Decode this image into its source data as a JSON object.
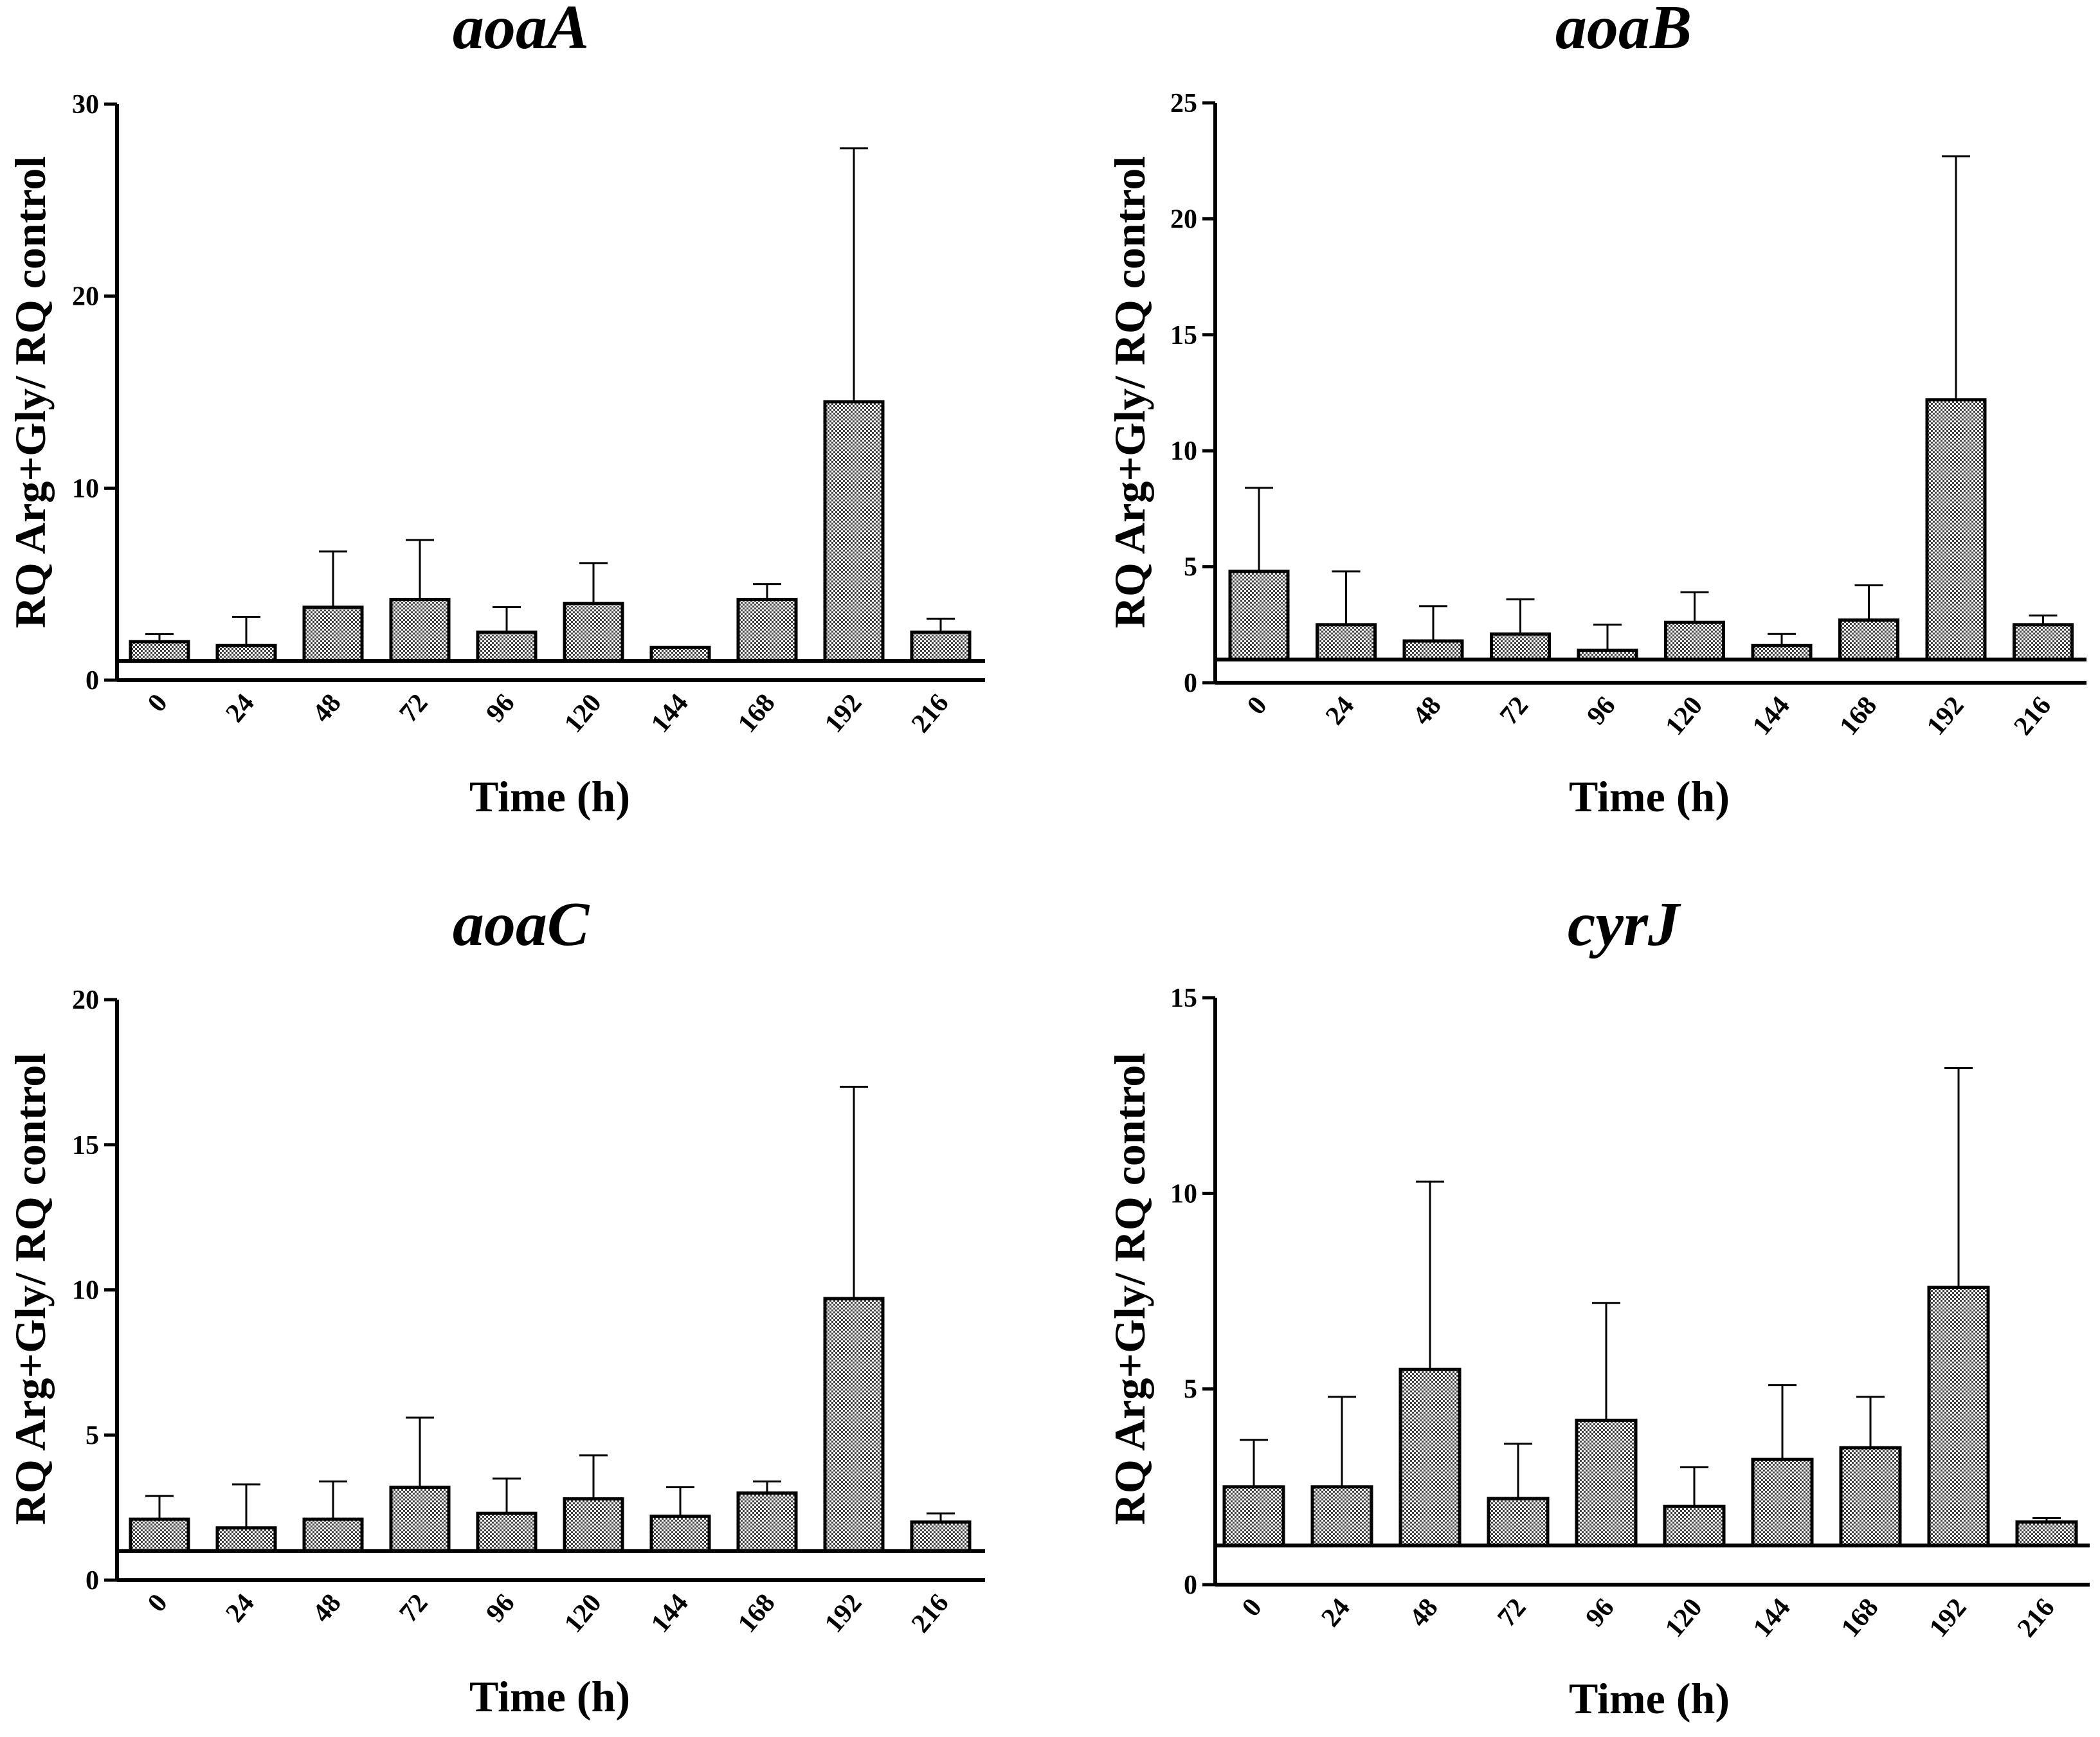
{
  "chart_data": [
    {
      "type": "bar",
      "title": "aoaA",
      "xlabel": "Time (h)",
      "ylabel": "RQ Arg+Gly/ RQ control",
      "ylim": [
        0,
        30
      ],
      "yticks": [
        0,
        10,
        20,
        30
      ],
      "baseline": 1,
      "categories": [
        "0",
        "24",
        "48",
        "72",
        "96",
        "120",
        "144",
        "168",
        "192",
        "216"
      ],
      "values": [
        2.0,
        1.8,
        3.8,
        4.2,
        2.5,
        4.0,
        1.7,
        4.2,
        14.5,
        2.5
      ],
      "errors": [
        0.4,
        1.5,
        2.9,
        3.1,
        1.3,
        2.1,
        0.0,
        0.8,
        13.2,
        0.7
      ]
    },
    {
      "type": "bar",
      "title": "aoaB",
      "xlabel": "Time (h)",
      "ylabel": "RQ Arg+Gly/ RQ control",
      "ylim": [
        0,
        25
      ],
      "yticks": [
        0,
        5,
        10,
        15,
        20,
        25
      ],
      "baseline": 1,
      "categories": [
        "0",
        "24",
        "48",
        "72",
        "96",
        "120",
        "144",
        "168",
        "192",
        "216"
      ],
      "values": [
        4.8,
        2.5,
        1.8,
        2.1,
        1.4,
        2.6,
        1.6,
        2.7,
        12.2,
        2.5
      ],
      "errors": [
        3.6,
        2.3,
        1.5,
        1.5,
        1.1,
        1.3,
        0.5,
        1.5,
        10.5,
        0.4
      ]
    },
    {
      "type": "bar",
      "title": "aoaC",
      "xlabel": "Time (h)",
      "ylabel": "RQ Arg+Gly/ RQ control",
      "ylim": [
        0,
        20
      ],
      "yticks": [
        0,
        5,
        10,
        15,
        20
      ],
      "baseline": 1,
      "categories": [
        "0",
        "24",
        "48",
        "72",
        "96",
        "120",
        "144",
        "168",
        "192",
        "216"
      ],
      "values": [
        2.1,
        1.8,
        2.1,
        3.2,
        2.3,
        2.8,
        2.2,
        3.0,
        9.7,
        2.0
      ],
      "errors": [
        0.8,
        1.5,
        1.3,
        2.4,
        1.2,
        1.5,
        1.0,
        0.4,
        7.3,
        0.3
      ]
    },
    {
      "type": "bar",
      "title": "cyrJ",
      "xlabel": "Time (h)",
      "ylabel": "RQ Arg+Gly/ RQ control",
      "ylim": [
        0,
        15
      ],
      "yticks": [
        0,
        5,
        10,
        15
      ],
      "baseline": 1,
      "categories": [
        "0",
        "24",
        "48",
        "72",
        "96",
        "120",
        "144",
        "168",
        "192",
        "216"
      ],
      "values": [
        2.5,
        2.5,
        5.5,
        2.2,
        4.2,
        2.0,
        3.2,
        3.5,
        7.6,
        1.6
      ],
      "errors": [
        1.2,
        2.3,
        4.8,
        1.4,
        3.0,
        1.0,
        1.9,
        1.3,
        5.6,
        0.1
      ]
    }
  ]
}
